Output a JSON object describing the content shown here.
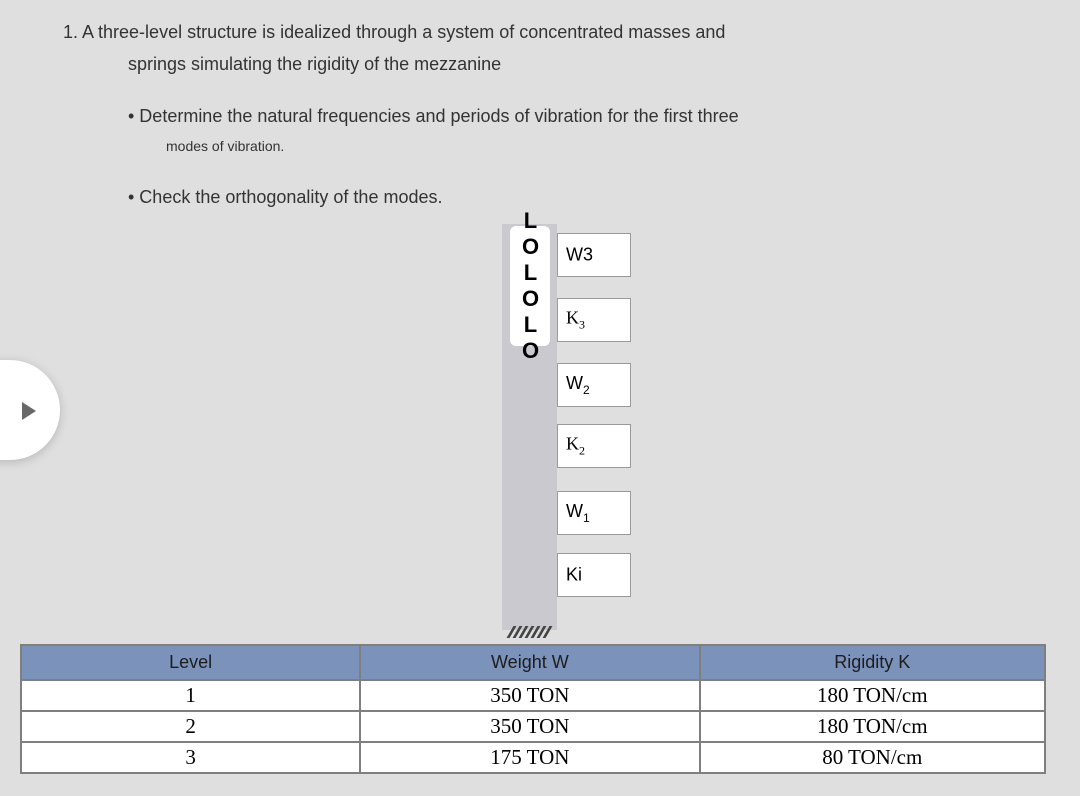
{
  "problem": {
    "line1": "1. A three-level structure is idealized through a system of concentrated masses and",
    "line2": "springs simulating the rigidity of the mezzanine",
    "bullet1_line1": "• Determine the natural frequencies and periods of vibration for the first three",
    "bullet1_line2": "modes of vibration.",
    "bullet2": "•  Check the orthogonality of the modes."
  },
  "diagram": {
    "vertical_text": "LOLOLO",
    "mass3_plain": "W3",
    "k3_base": "K",
    "k3_sub": "3",
    "w2_base": "W",
    "w2_sub": "2",
    "k2_base": "K",
    "k2_sub": "2",
    "w1_base": "W",
    "w1_sub": "1",
    "ki": "Ki",
    "colors": {
      "stem": "#c9c9cf",
      "box_border": "#9a9a9a",
      "box_fill": "#ffffff",
      "page_bg": "#dfdfdf"
    }
  },
  "table": {
    "headers": {
      "level": "Level",
      "weight": "Weight W",
      "rigidity": "Rigidity K"
    },
    "header_bg": "#7b92ba",
    "border_color": "#7f7f7f",
    "rows": [
      {
        "level": "1",
        "weight": "350 TON",
        "rigidity": "180 TON/cm"
      },
      {
        "level": "2",
        "weight": "350 TON",
        "rigidity": "180 TON/cm"
      },
      {
        "level": "3",
        "weight": "175 TON",
        "rigidity": "80 TON/cm"
      }
    ]
  }
}
